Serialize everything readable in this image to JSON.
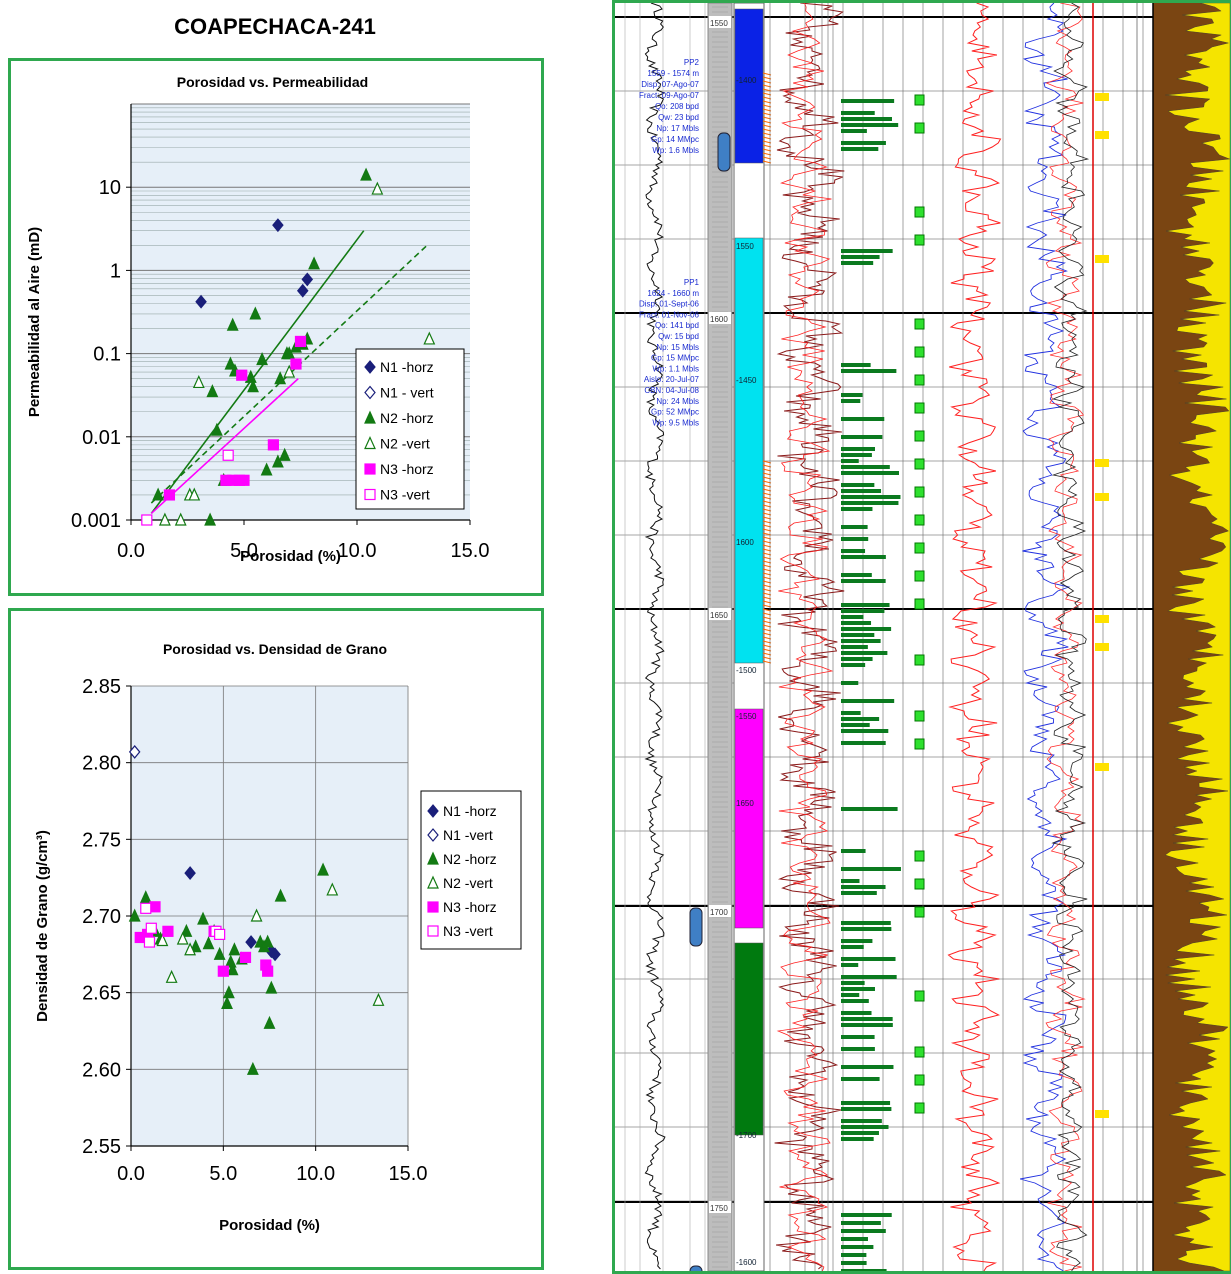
{
  "title": "COAPECHACA-241",
  "chart_data": [
    {
      "type": "scatter",
      "title": "Porosidad vs. Permeabilidad",
      "xlabel": "Porosidad (%)",
      "ylabel": "Permeabilidad al Aire  (mD)",
      "xlim": [
        0,
        15
      ],
      "ylim": [
        0.001,
        100
      ],
      "yscale": "log",
      "x_ticks": [
        "0.0",
        "5.0",
        "10.0",
        "15.0"
      ],
      "y_ticks": [
        "0.001",
        "0.01",
        "0.1",
        "1",
        "10"
      ],
      "grid": "horizontal",
      "legend_position": "right",
      "series": [
        {
          "name": "N1 -horz",
          "marker": "diamond-filled",
          "color": "#1a1f7a",
          "points": [
            [
              3.1,
              0.42
            ],
            [
              6.5,
              3.5
            ],
            [
              7.6,
              0.57
            ],
            [
              7.8,
              0.78
            ]
          ]
        },
        {
          "name": "N1 - vert",
          "marker": "diamond-open",
          "color": "#1a1f7a",
          "points": []
        },
        {
          "name": "N2 -horz",
          "marker": "triangle-filled",
          "color": "#137a13",
          "points": [
            [
              1.2,
              0.002
            ],
            [
              3.5,
              0.001
            ],
            [
              3.6,
              0.035
            ],
            [
              3.8,
              0.012
            ],
            [
              4.1,
              0.003
            ],
            [
              4.4,
              0.075
            ],
            [
              4.5,
              0.22
            ],
            [
              4.6,
              0.062
            ],
            [
              5.4,
              0.04
            ],
            [
              5.5,
              0.3
            ],
            [
              5.8,
              0.085
            ],
            [
              6.0,
              0.004
            ],
            [
              6.5,
              0.005
            ],
            [
              6.6,
              0.05
            ],
            [
              6.8,
              0.006
            ],
            [
              6.9,
              0.1
            ],
            [
              7.0,
              0.1
            ],
            [
              7.3,
              0.12
            ],
            [
              7.6,
              0.13
            ],
            [
              7.8,
              0.15
            ],
            [
              8.1,
              1.2
            ],
            [
              10.4,
              14
            ],
            [
              5.3,
              0.052
            ]
          ]
        },
        {
          "name": "N2 -vert",
          "marker": "triangle-open",
          "color": "#137a13",
          "points": [
            [
              1.5,
              0.001
            ],
            [
              2.2,
              0.001
            ],
            [
              2.6,
              0.002
            ],
            [
              2.8,
              0.002
            ],
            [
              3.0,
              0.045
            ],
            [
              7.0,
              0.06
            ],
            [
              10.9,
              9.5
            ],
            [
              13.2,
              0.15
            ]
          ]
        },
        {
          "name": "N3 -horz",
          "marker": "square-filled",
          "color": "#ff00ff",
          "points": [
            [
              1.7,
              0.002
            ],
            [
              4.2,
              0.003
            ],
            [
              4.5,
              0.003
            ],
            [
              4.8,
              0.003
            ],
            [
              5.0,
              0.003
            ],
            [
              4.9,
              0.055
            ],
            [
              6.3,
              0.008
            ],
            [
              7.3,
              0.075
            ],
            [
              7.5,
              0.14
            ]
          ]
        },
        {
          "name": "N3 -vert",
          "marker": "square-open",
          "color": "#ff00ff",
          "points": [
            [
              0.7,
              0.001
            ],
            [
              4.3,
              0.006
            ]
          ]
        }
      ],
      "trendlines": [
        {
          "color": "#137a13",
          "style": "solid",
          "x": [
            0.9,
            10.3
          ],
          "y": [
            0.0012,
            3.0
          ]
        },
        {
          "color": "#137a13",
          "style": "dashed",
          "x": [
            0.9,
            13.1
          ],
          "y": [
            0.0016,
            2.0
          ]
        },
        {
          "color": "#ff00ff",
          "style": "solid",
          "x": [
            0.9,
            7.4
          ],
          "y": [
            0.0012,
            0.05
          ]
        }
      ]
    },
    {
      "type": "scatter",
      "title": "Porosidad vs. Densidad de Grano",
      "xlabel": "Porosidad (%)",
      "ylabel": "Densidad de Grano (g/cm³)",
      "xlim": [
        0,
        15
      ],
      "ylim": [
        2.55,
        2.85
      ],
      "x_ticks": [
        "0.0",
        "5.0",
        "10.0",
        "15.0"
      ],
      "y_ticks": [
        "2.55",
        "2.60",
        "2.65",
        "2.70",
        "2.75",
        "2.80",
        "2.85"
      ],
      "grid": "both",
      "legend_position": "right",
      "series": [
        {
          "name": "N1 -horz",
          "marker": "diamond-filled",
          "color": "#1a1f7a",
          "points": [
            [
              3.2,
              2.728
            ],
            [
              6.5,
              2.683
            ],
            [
              7.6,
              2.677
            ],
            [
              7.8,
              2.675
            ]
          ]
        },
        {
          "name": "N1 -vert",
          "marker": "diamond-open",
          "color": "#1a1f7a",
          "points": [
            [
              0.2,
              2.807
            ]
          ]
        },
        {
          "name": "N2 -horz",
          "marker": "triangle-filled",
          "color": "#137a13",
          "points": [
            [
              0.2,
              2.7
            ],
            [
              0.8,
              2.712
            ],
            [
              1.3,
              2.69
            ],
            [
              1.6,
              2.685
            ],
            [
              3.0,
              2.69
            ],
            [
              3.5,
              2.68
            ],
            [
              3.9,
              2.698
            ],
            [
              4.2,
              2.682
            ],
            [
              4.5,
              2.69
            ],
            [
              4.8,
              2.675
            ],
            [
              5.2,
              2.643
            ],
            [
              5.3,
              2.65
            ],
            [
              5.5,
              2.665
            ],
            [
              5.6,
              2.678
            ],
            [
              6.0,
              2.672
            ],
            [
              6.6,
              2.6
            ],
            [
              7.0,
              2.683
            ],
            [
              7.2,
              2.68
            ],
            [
              7.5,
              2.63
            ],
            [
              7.6,
              2.653
            ],
            [
              8.1,
              2.713
            ],
            [
              10.4,
              2.73
            ],
            [
              5.4,
              2.67
            ],
            [
              7.4,
              2.683
            ]
          ]
        },
        {
          "name": "N2 -vert",
          "marker": "triangle-open",
          "color": "#137a13",
          "points": [
            [
              1.7,
              2.684
            ],
            [
              2.2,
              2.66
            ],
            [
              2.8,
              2.685
            ],
            [
              3.2,
              2.678
            ],
            [
              6.8,
              2.7
            ],
            [
              10.9,
              2.717
            ],
            [
              13.4,
              2.645
            ]
          ]
        },
        {
          "name": "N3 -horz",
          "marker": "square-filled",
          "color": "#ff00ff",
          "points": [
            [
              0.5,
              2.686
            ],
            [
              0.9,
              2.688
            ],
            [
              1.3,
              2.706
            ],
            [
              2.0,
              2.69
            ],
            [
              4.5,
              2.69
            ],
            [
              5.0,
              2.664
            ],
            [
              6.2,
              2.673
            ],
            [
              7.3,
              2.668
            ],
            [
              7.4,
              2.664
            ]
          ]
        },
        {
          "name": "N3 -vert",
          "marker": "square-open",
          "color": "#ff00ff",
          "points": [
            [
              0.8,
              2.705
            ],
            [
              1.0,
              2.683
            ],
            [
              1.1,
              2.692
            ],
            [
              4.6,
              2.69
            ],
            [
              4.8,
              2.688
            ]
          ]
        }
      ]
    }
  ],
  "log": {
    "depth_ticks": [
      "1550",
      "1600",
      "1650",
      "1700",
      "1750"
    ],
    "zone_labels": [
      "-1400",
      "1550",
      "-1450",
      "1600",
      "-1500",
      "1650",
      "-1550",
      "-1700",
      "-1600"
    ],
    "zone_colors": [
      "#0a22e6",
      "#00e2f0",
      "#ff00ff",
      "#007a0f"
    ],
    "pp2": [
      "PP2",
      "1559 - 1574 m",
      "Disp: 07-Ago-07",
      "Fract: 09-Ago-07",
      "Qo: 208 bpd",
      "Qw: 23 bpd",
      "Np: 17 Mbls",
      "Gp: 14 MMpc",
      "Wp: 1.6 Mbls"
    ],
    "pp1": [
      "PP1",
      "1624 - 1660 m",
      "Disp: 01-Sept-06",
      "Fract: 01-Nov-06",
      "Qo: 141 bpd",
      "Qw: 15 bpd",
      "Np: 15 Mbls",
      "Gp: 15 MMpc",
      "Wp: 1.1 Mbls",
      "Aislo: 20-Jul-07",
      "CBN: 04-Jul-08",
      "Np: 24 Mbls",
      "Gp: 52 MMpc",
      "Wp: 9.5 Mbls"
    ]
  }
}
